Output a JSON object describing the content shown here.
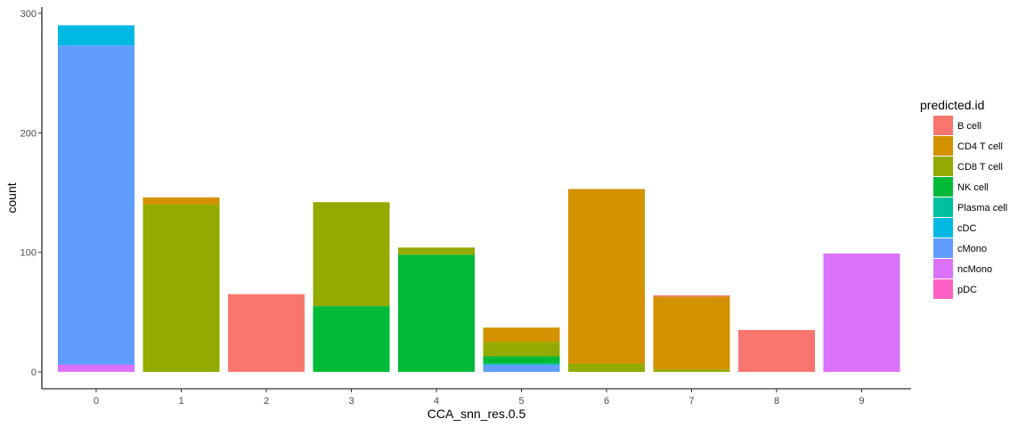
{
  "chart_data": {
    "type": "bar",
    "stacked": true,
    "xlabel": "CCA_snn_res.0.5",
    "ylabel": "count",
    "ylim": [
      0,
      300
    ],
    "yticks": [
      0,
      100,
      200,
      300
    ],
    "grid": false,
    "legend": {
      "title": "predicted.id",
      "position": "right",
      "items": [
        {
          "name": "B cell",
          "color": "#F8766D"
        },
        {
          "name": "CD4 T cell",
          "color": "#D39200"
        },
        {
          "name": "CD8 T cell",
          "color": "#93AA00"
        },
        {
          "name": "NK cell",
          "color": "#00BA38"
        },
        {
          "name": "Plasma cell",
          "color": "#00C19F"
        },
        {
          "name": "cDC",
          "color": "#00B9E3"
        },
        {
          "name": "cMono",
          "color": "#619CFF"
        },
        {
          "name": "ncMono",
          "color": "#DB72FB"
        },
        {
          "name": "pDC",
          "color": "#FF61C3"
        }
      ]
    },
    "categories": [
      "0",
      "1",
      "2",
      "3",
      "4",
      "5",
      "6",
      "7",
      "8",
      "9"
    ],
    "series": [
      {
        "name": "B cell",
        "values": [
          0,
          0,
          65,
          0,
          0,
          0,
          0,
          1,
          35,
          0
        ]
      },
      {
        "name": "CD4 T cell",
        "values": [
          0,
          6,
          0,
          0,
          0,
          12,
          146,
          61,
          0,
          0
        ]
      },
      {
        "name": "CD8 T cell",
        "values": [
          0,
          140,
          0,
          87,
          6,
          12,
          7,
          2,
          0,
          0
        ]
      },
      {
        "name": "NK cell",
        "values": [
          0,
          0,
          0,
          55,
          98,
          6,
          0,
          0,
          0,
          0
        ]
      },
      {
        "name": "Plasma cell",
        "values": [
          0,
          0,
          0,
          0,
          0,
          1,
          0,
          0,
          0,
          0
        ]
      },
      {
        "name": "cDC",
        "values": [
          17,
          0,
          0,
          0,
          0,
          0,
          0,
          0,
          0,
          0
        ]
      },
      {
        "name": "cMono",
        "values": [
          267,
          0,
          0,
          0,
          0,
          6,
          0,
          0,
          0,
          0
        ]
      },
      {
        "name": "ncMono",
        "values": [
          6,
          0,
          0,
          0,
          0,
          0,
          0,
          0,
          0,
          99
        ]
      },
      {
        "name": "pDC",
        "values": [
          0,
          0,
          0,
          0,
          0,
          0,
          0,
          0,
          0,
          0
        ]
      }
    ]
  }
}
